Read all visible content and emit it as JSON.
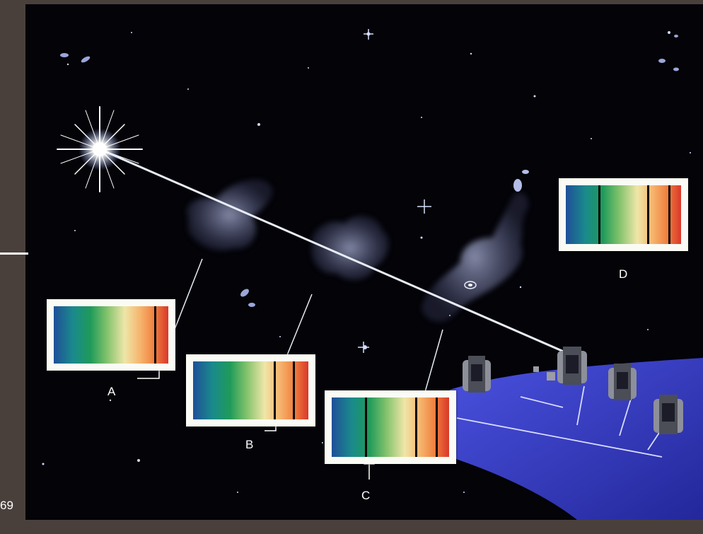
{
  "diagram": {
    "spectra": [
      {
        "id": "A",
        "label": "A",
        "absorption_lines": 1
      },
      {
        "id": "B",
        "label": "B",
        "absorption_lines": 2
      },
      {
        "id": "C",
        "label": "C",
        "absorption_lines": 3
      },
      {
        "id": "D",
        "label": "D",
        "absorption_lines": 3
      }
    ],
    "spectrum_colors": [
      "#1f4f99",
      "#1f9a5a",
      "#efe6a8",
      "#f6b26b",
      "#d9382a"
    ],
    "icons": [
      "quasar-star-icon",
      "gas-cloud-icon",
      "galaxy-icon",
      "telescope-icon",
      "observatory-base-icon"
    ]
  },
  "page": {
    "number": "69"
  },
  "colors": {
    "side_panel": "#4a403b",
    "sky": "#030308",
    "base": "#3a3ec8",
    "line": "#ffffff"
  }
}
